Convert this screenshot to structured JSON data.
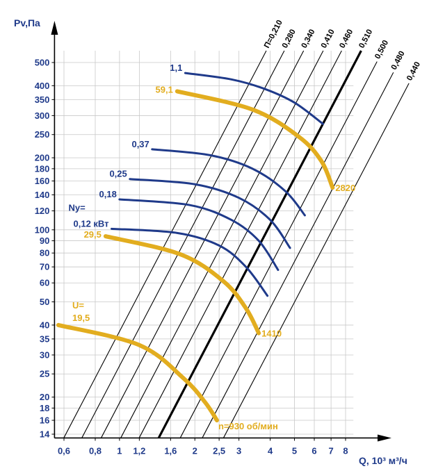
{
  "chart_data": {
    "type": "line",
    "title": "",
    "ylabel": "Pv,Па",
    "xlabel": "Q, 10³ м³/ч",
    "x_scale": "log",
    "y_scale": "log",
    "xlim": [
      0.55,
      8.6
    ],
    "ylim": [
      13.5,
      560
    ],
    "x_ticks": [
      0.6,
      0.8,
      1,
      1.2,
      1.6,
      2,
      2.5,
      3,
      4,
      5,
      6,
      7,
      8
    ],
    "x_tick_labels": [
      "0,6",
      "0,8",
      "1",
      "1,2",
      "1,6",
      "2",
      "2,5",
      "3",
      "4",
      "5",
      "6",
      "7",
      "8"
    ],
    "y_ticks": [
      14,
      16,
      18,
      20,
      25,
      30,
      35,
      40,
      50,
      60,
      70,
      80,
      90,
      100,
      120,
      140,
      160,
      180,
      200,
      250,
      300,
      350,
      400,
      500
    ],
    "y_tick_labels": [
      "14",
      "16",
      "18",
      "20",
      "25",
      "30",
      "35",
      "40",
      "50",
      "60",
      "70",
      "80",
      "90",
      "100",
      "120",
      "140",
      "160",
      "180",
      "200",
      "250",
      "300",
      "350",
      "400",
      "500"
    ],
    "efficiency_lines": {
      "legend_prefix": "П=",
      "slope": 2,
      "series": [
        {
          "name": "0,210",
          "label": "П=0,210",
          "q_at_p14": 0.61
        },
        {
          "name": "0,280",
          "label": "0,280",
          "q_at_p14": 0.72
        },
        {
          "name": "0,340",
          "label": "0,340",
          "q_at_p14": 0.86
        },
        {
          "name": "0,410",
          "label": "0,410",
          "q_at_p14": 1.03
        },
        {
          "name": "0,460",
          "label": "0,460",
          "q_at_p14": 1.22
        },
        {
          "name": "0,510",
          "label": "0,510",
          "q_at_p14": 1.46,
          "main": true
        },
        {
          "name": "0,500",
          "label": "0,500",
          "q_at_p14": 1.78
        },
        {
          "name": "0,480",
          "label": "0,480",
          "q_at_p14": 2.18
        },
        {
          "name": "0,440",
          "label": "0,440",
          "q_at_p14": 2.65
        }
      ]
    },
    "power_lines": {
      "legend_prefix": "Ny=",
      "unit": "кВт",
      "series": [
        {
          "name": "1,1",
          "label": "1,1",
          "points": [
            [
              1.83,
              452
            ],
            [
              2.8,
              425
            ],
            [
              3.8,
              388
            ],
            [
              5.0,
              340
            ],
            [
              6.5,
              277
            ]
          ]
        },
        {
          "name": "0,37",
          "label": "0,37",
          "points": [
            [
              1.35,
              217
            ],
            [
              2.3,
              205
            ],
            [
              3.4,
              180
            ],
            [
              4.6,
              145
            ],
            [
              5.5,
              115
            ]
          ]
        },
        {
          "name": "0,25",
          "label": "0,25",
          "points": [
            [
              1.1,
              163
            ],
            [
              2.0,
              155
            ],
            [
              3.0,
              136
            ],
            [
              4.0,
              110
            ],
            [
              4.8,
              84
            ]
          ]
        },
        {
          "name": "0,18",
          "label": "0,18",
          "points": [
            [
              1.0,
              134
            ],
            [
              1.9,
              127
            ],
            [
              2.8,
              110
            ],
            [
              3.6,
              90
            ],
            [
              4.3,
              68
            ]
          ]
        },
        {
          "name": "0,12 кВт",
          "label": "0,12 кВт",
          "points": [
            [
              0.93,
              101
            ],
            [
              1.7,
              97
            ],
            [
              2.5,
              86
            ],
            [
              3.2,
              70
            ],
            [
              3.9,
              53
            ]
          ]
        }
      ]
    },
    "speed_lines": {
      "legend_prefix": "U=",
      "unit": "об/мин",
      "series": [
        {
          "name": "19,5",
          "speed": "n=930 об/мин",
          "points": [
            [
              0.57,
              40
            ],
            [
              1.2,
              33
            ],
            [
              1.8,
              24
            ],
            [
              2.2,
              19
            ],
            [
              2.45,
              16
            ]
          ]
        },
        {
          "name": "29,5",
          "speed": "1410",
          "points": [
            [
              0.88,
              94
            ],
            [
              1.75,
              79
            ],
            [
              2.6,
              61
            ],
            [
              3.2,
              47
            ],
            [
              3.6,
              37
            ]
          ]
        },
        {
          "name": "59,1",
          "speed": "2820",
          "points": [
            [
              1.7,
              379
            ],
            [
              3.4,
              318
            ],
            [
              5.2,
              245
            ],
            [
              6.4,
              194
            ],
            [
              7.1,
              150
            ]
          ]
        }
      ]
    }
  }
}
